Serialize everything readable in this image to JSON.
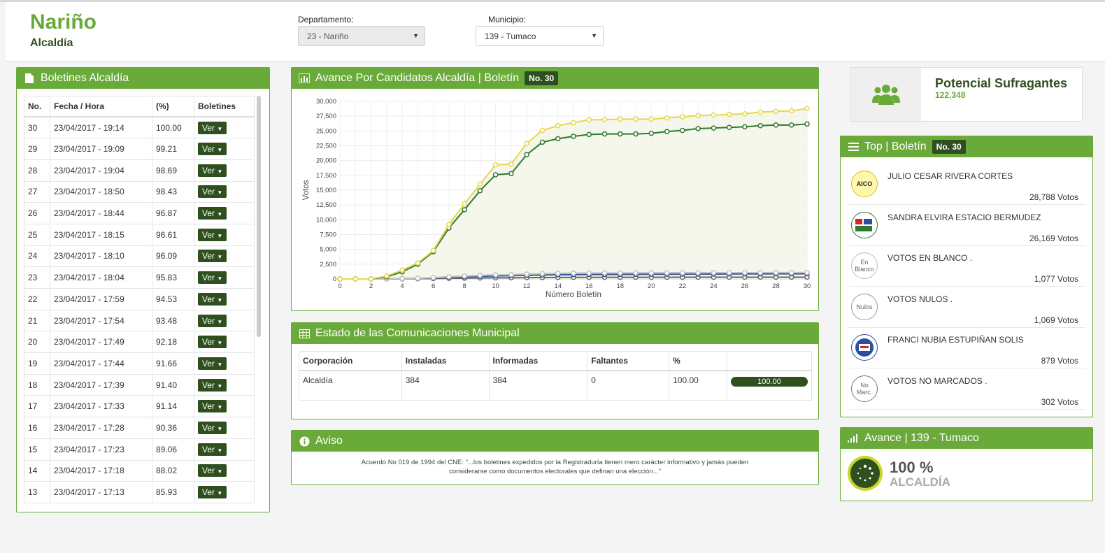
{
  "header": {
    "title": "Nariño",
    "subtitle": "Alcaldía",
    "departamento_label": "Departamento:",
    "departamento_value": "23 - Nariño",
    "municipio_label": "Municipio:",
    "municipio_value": "139 - Tumaco"
  },
  "boletines": {
    "title": "Boletines Alcaldía",
    "columns": [
      "No.",
      "Fecha / Hora",
      "(%)",
      "Boletines"
    ],
    "button_label": "Ver",
    "rows": [
      {
        "no": "30",
        "fecha": "23/04/2017 - 19:14",
        "pct": "100.00"
      },
      {
        "no": "29",
        "fecha": "23/04/2017 - 19:09",
        "pct": "99.21"
      },
      {
        "no": "28",
        "fecha": "23/04/2017 - 19:04",
        "pct": "98.69"
      },
      {
        "no": "27",
        "fecha": "23/04/2017 - 18:50",
        "pct": "98.43"
      },
      {
        "no": "26",
        "fecha": "23/04/2017 - 18:44",
        "pct": "96.87"
      },
      {
        "no": "25",
        "fecha": "23/04/2017 - 18:15",
        "pct": "96.61"
      },
      {
        "no": "24",
        "fecha": "23/04/2017 - 18:10",
        "pct": "96.09"
      },
      {
        "no": "23",
        "fecha": "23/04/2017 - 18:04",
        "pct": "95.83"
      },
      {
        "no": "22",
        "fecha": "23/04/2017 - 17:59",
        "pct": "94.53"
      },
      {
        "no": "21",
        "fecha": "23/04/2017 - 17:54",
        "pct": "93.48"
      },
      {
        "no": "20",
        "fecha": "23/04/2017 - 17:49",
        "pct": "92.18"
      },
      {
        "no": "19",
        "fecha": "23/04/2017 - 17:44",
        "pct": "91.66"
      },
      {
        "no": "18",
        "fecha": "23/04/2017 - 17:39",
        "pct": "91.40"
      },
      {
        "no": "17",
        "fecha": "23/04/2017 - 17:33",
        "pct": "91.14"
      },
      {
        "no": "16",
        "fecha": "23/04/2017 - 17:28",
        "pct": "90.36"
      },
      {
        "no": "15",
        "fecha": "23/04/2017 - 17:23",
        "pct": "89.06"
      },
      {
        "no": "14",
        "fecha": "23/04/2017 - 17:18",
        "pct": "88.02"
      },
      {
        "no": "13",
        "fecha": "23/04/2017 - 17:13",
        "pct": "85.93"
      }
    ]
  },
  "avance_chart": {
    "title": "Avance Por Candidatos Alcaldía | Boletín",
    "badge": "No. 30"
  },
  "chart_data": {
    "type": "line",
    "xlabel": "Número Boletín",
    "ylabel": "Votos",
    "xlim": [
      0,
      30
    ],
    "ylim": [
      0,
      30000
    ],
    "xticks": [
      0,
      2,
      4,
      6,
      8,
      10,
      12,
      14,
      16,
      18,
      20,
      22,
      24,
      26,
      28,
      30
    ],
    "yticks": [
      0,
      2500,
      5000,
      7500,
      10000,
      12500,
      15000,
      17500,
      20000,
      22500,
      25000,
      27500,
      30000
    ],
    "ytick_labels": [
      "0",
      "2,500",
      "5,000",
      "7,500",
      "10,000",
      "12,500",
      "15,000",
      "17,500",
      "20,000",
      "22,500",
      "25,000",
      "27,500",
      "30,000"
    ],
    "grid": true,
    "x": [
      0,
      1,
      2,
      3,
      4,
      5,
      6,
      7,
      8,
      9,
      10,
      11,
      12,
      13,
      14,
      15,
      16,
      17,
      18,
      19,
      20,
      21,
      22,
      23,
      24,
      25,
      26,
      27,
      28,
      29,
      30
    ],
    "series": [
      {
        "color": "#e6d84a",
        "values": [
          0,
          0,
          0,
          500,
          1500,
          2700,
          4800,
          9200,
          12700,
          16000,
          19300,
          19400,
          22900,
          25100,
          25900,
          26400,
          26900,
          26900,
          27000,
          27000,
          27000,
          27200,
          27400,
          27600,
          27700,
          27800,
          27900,
          28200,
          28300,
          28400,
          28788
        ]
      },
      {
        "color": "#2f7a2f",
        "values": [
          0,
          0,
          0,
          350,
          1200,
          2500,
          4600,
          8600,
          11700,
          14900,
          17600,
          17800,
          21000,
          23100,
          23700,
          24100,
          24400,
          24500,
          24500,
          24500,
          24600,
          24900,
          25100,
          25400,
          25500,
          25600,
          25700,
          25900,
          26000,
          26000,
          26169
        ]
      },
      {
        "color": "#c0c0c0",
        "values": [
          0,
          0,
          0,
          30,
          80,
          130,
          220,
          380,
          500,
          600,
          700,
          720,
          820,
          900,
          950,
          980,
          1000,
          1010,
          1020,
          1030,
          1035,
          1040,
          1045,
          1050,
          1055,
          1060,
          1065,
          1070,
          1072,
          1075,
          1077
        ]
      },
      {
        "color": "#d5d5a0",
        "values": [
          0,
          0,
          0,
          30,
          75,
          125,
          210,
          370,
          490,
          590,
          690,
          710,
          810,
          890,
          940,
          970,
          990,
          1000,
          1010,
          1020,
          1025,
          1030,
          1035,
          1040,
          1045,
          1050,
          1055,
          1060,
          1064,
          1066,
          1069
        ]
      },
      {
        "color": "#2a4fa0",
        "values": [
          0,
          0,
          0,
          20,
          60,
          100,
          160,
          280,
          370,
          450,
          520,
          540,
          610,
          670,
          710,
          730,
          750,
          760,
          770,
          780,
          790,
          800,
          810,
          820,
          830,
          840,
          850,
          860,
          865,
          870,
          879
        ]
      },
      {
        "color": "#666666",
        "values": [
          0,
          0,
          0,
          8,
          22,
          38,
          60,
          100,
          135,
          165,
          190,
          198,
          222,
          240,
          255,
          262,
          270,
          273,
          276,
          279,
          282,
          285,
          288,
          291,
          294,
          296,
          298,
          299,
          300,
          301,
          302
        ]
      }
    ]
  },
  "comunicaciones": {
    "title": "Estado de las Comunicaciones Municipal",
    "columns": [
      "Corporación",
      "Instaladas",
      "Informadas",
      "Faltantes",
      "%"
    ],
    "row": {
      "corporacion": "Alcaldía",
      "instaladas": "384",
      "informadas": "384",
      "faltantes": "0",
      "pct": "100.00",
      "bar": "100.00"
    }
  },
  "aviso": {
    "title": "Aviso",
    "line1": "Acuerdo No 019 de 1994 del CNE: \"...los boletines expedidos por la Registraduría tienen mero carácter informativo y jamás pueden",
    "line2": "considerarse como documentos electorales que definan una elección...\""
  },
  "potencial": {
    "title": "Potencial Sufragantes",
    "value": "122,348"
  },
  "top": {
    "title": "Top | Boletín",
    "badge": "No. 30",
    "items": [
      {
        "name": "JULIO CESAR RIVERA CORTES",
        "votes": "28,788 Votos",
        "logo": "AICO"
      },
      {
        "name": "SANDRA ELVIRA ESTACIO BERMUDEZ",
        "votes": "26,169 Votos",
        "logo": ""
      },
      {
        "name": "VOTOS EN BLANCO .",
        "votes": "1,077 Votos",
        "logo": "En Blanco"
      },
      {
        "name": "VOTOS NULOS .",
        "votes": "1,069 Votos",
        "logo": "Nulos"
      },
      {
        "name": "FRANCI NUBIA ESTUPIÑAN SOLIS",
        "votes": "879 Votos",
        "logo": ""
      },
      {
        "name": "VOTOS NO MARCADOS .",
        "votes": "302 Votos",
        "logo": "No Marc."
      }
    ]
  },
  "avance_municipio": {
    "title": "Avance | 139 - Tumaco",
    "pct": "100 %",
    "label": "ALCALDÍA"
  }
}
